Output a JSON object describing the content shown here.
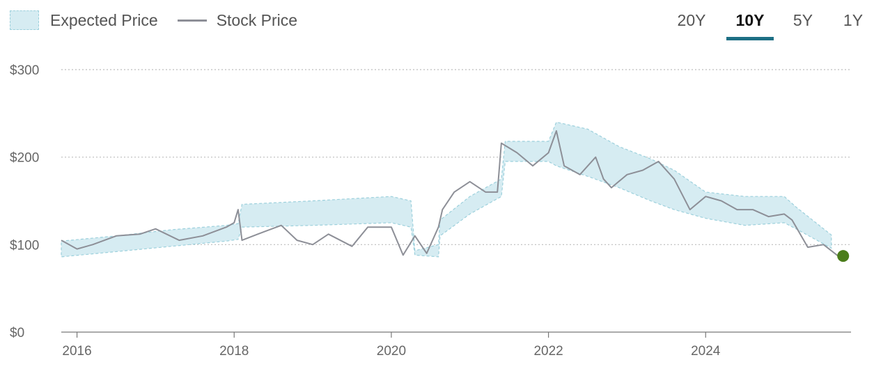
{
  "legend": {
    "expected_label": "Expected Price",
    "stock_label": "Stock Price"
  },
  "tabs": [
    {
      "label": "20Y",
      "active": false
    },
    {
      "label": "10Y",
      "active": true
    },
    {
      "label": "5Y",
      "active": false
    },
    {
      "label": "1Y",
      "active": false
    }
  ],
  "colors": {
    "band_fill": "#d6ecf2",
    "band_edge": "#9cd0dc",
    "stock_line": "#8d8f97",
    "current_dot": "#4b7d1b",
    "tab_underline": "#1d6f84",
    "grid": "#bdbdbd"
  },
  "chart_data": {
    "type": "area",
    "title": "",
    "xlabel": "",
    "ylabel": "",
    "xlim": [
      2015.8,
      2025.85
    ],
    "ylim": [
      0,
      300
    ],
    "y_ticks": [
      0,
      100,
      200,
      300
    ],
    "y_tick_labels": [
      "$0",
      "$100",
      "$200",
      "$300"
    ],
    "x_ticks": [
      2016,
      2018,
      2020,
      2022,
      2024
    ],
    "x_tick_labels": [
      "2016",
      "2018",
      "2020",
      "2022",
      "2024"
    ],
    "grid": true,
    "legend_position": "top-left",
    "series": [
      {
        "name": "Expected Price",
        "kind": "band",
        "x": [
          2015.8,
          2016.5,
          2017.2,
          2017.9,
          2018.05,
          2018.1,
          2019.0,
          2020.0,
          2020.25,
          2020.3,
          2020.6,
          2020.62,
          2021.0,
          2021.4,
          2021.45,
          2022.0,
          2022.1,
          2022.5,
          2022.9,
          2023.3,
          2023.6,
          2024.0,
          2024.5,
          2025.0,
          2025.15,
          2025.6
        ],
        "upper": [
          104,
          110,
          117,
          122,
          124,
          146,
          150,
          155,
          150,
          93,
          100,
          128,
          155,
          175,
          218,
          218,
          240,
          232,
          212,
          198,
          185,
          160,
          155,
          155,
          143,
          111
        ],
        "lower": [
          86,
          92,
          98,
          104,
          106,
          120,
          122,
          125,
          120,
          88,
          86,
          110,
          135,
          155,
          195,
          195,
          190,
          178,
          165,
          150,
          140,
          130,
          122,
          125,
          118,
          96
        ]
      },
      {
        "name": "Stock Price",
        "kind": "line",
        "x": [
          2015.8,
          2016.0,
          2016.2,
          2016.5,
          2016.8,
          2017.0,
          2017.3,
          2017.6,
          2017.9,
          2018.0,
          2018.05,
          2018.1,
          2018.3,
          2018.6,
          2018.8,
          2019.0,
          2019.2,
          2019.5,
          2019.7,
          2020.0,
          2020.15,
          2020.3,
          2020.45,
          2020.6,
          2020.65,
          2020.8,
          2021.0,
          2021.2,
          2021.35,
          2021.4,
          2021.6,
          2021.8,
          2022.0,
          2022.1,
          2022.2,
          2022.4,
          2022.6,
          2022.7,
          2022.8,
          2023.0,
          2023.2,
          2023.4,
          2023.6,
          2023.8,
          2024.0,
          2024.2,
          2024.4,
          2024.6,
          2024.8,
          2025.0,
          2025.1,
          2025.3,
          2025.5,
          2025.7
        ],
        "y": [
          105,
          95,
          100,
          110,
          112,
          118,
          105,
          110,
          120,
          125,
          140,
          105,
          112,
          122,
          105,
          100,
          112,
          98,
          120,
          120,
          88,
          110,
          90,
          120,
          140,
          160,
          172,
          160,
          160,
          216,
          205,
          190,
          205,
          230,
          190,
          180,
          200,
          175,
          165,
          180,
          185,
          195,
          175,
          140,
          155,
          150,
          140,
          140,
          132,
          135,
          128,
          97,
          100,
          86
        ]
      }
    ],
    "current_point": {
      "x": 2025.75,
      "y": 87
    }
  }
}
